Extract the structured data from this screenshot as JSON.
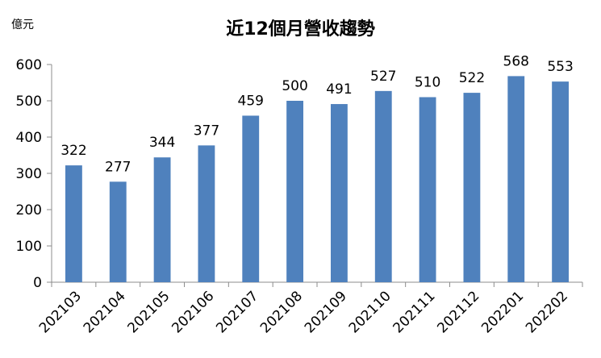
{
  "chart_data": {
    "type": "bar",
    "title": "近12個月營收趨勢",
    "unit_label": "億元",
    "categories": [
      "202103",
      "202104",
      "202105",
      "202106",
      "202107",
      "202108",
      "202109",
      "202110",
      "202111",
      "202112",
      "202201",
      "202202"
    ],
    "values": [
      322,
      277,
      344,
      377,
      459,
      500,
      491,
      527,
      510,
      522,
      568,
      553
    ],
    "ylim": [
      0,
      600
    ],
    "yticks": [
      0,
      100,
      200,
      300,
      400,
      500,
      600
    ],
    "grid": false,
    "legend": "none",
    "bar_color": "#4F81BD",
    "axis_color": "#8C8C8C"
  }
}
